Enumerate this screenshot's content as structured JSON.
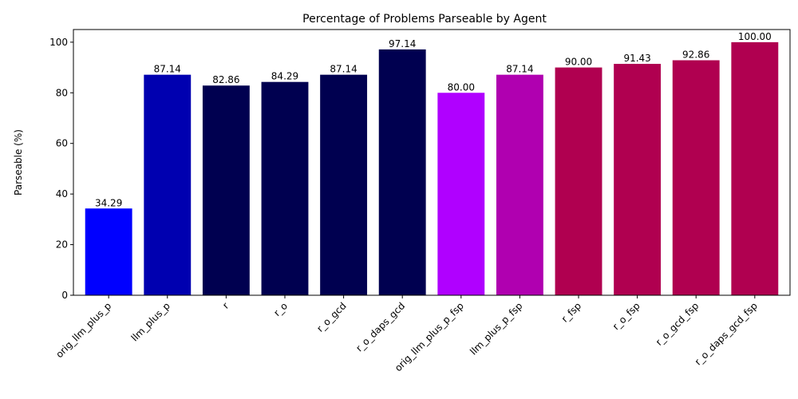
{
  "chart_data": {
    "type": "bar",
    "title": "Percentage of Problems Parseable by Agent",
    "xlabel": "",
    "ylabel": "Parseable (%)",
    "ylim": [
      0,
      105
    ],
    "yticks": [
      0,
      20,
      40,
      60,
      80,
      100
    ],
    "grid": false,
    "categories": [
      "orig_llm_plus_p",
      "llm_plus_p",
      "r",
      "r_o",
      "r_o_gcd",
      "r_o_daps_gcd",
      "orig_llm_plus_p_fsp",
      "llm_plus_p_fsp",
      "r_fsp",
      "r_o_fsp",
      "r_o_gcd_fsp",
      "r_o_daps_gcd_fsp"
    ],
    "values": [
      34.29,
      87.14,
      82.86,
      84.29,
      87.14,
      97.14,
      80.0,
      87.14,
      90.0,
      91.43,
      92.86,
      100.0
    ],
    "value_labels": [
      "34.29",
      "87.14",
      "82.86",
      "84.29",
      "87.14",
      "97.14",
      "80.00",
      "87.14",
      "90.00",
      "91.43",
      "92.86",
      "100.00"
    ],
    "colors": [
      "#0000ff",
      "#0000b0",
      "#000050",
      "#000050",
      "#000050",
      "#000050",
      "#b000ff",
      "#b000b0",
      "#b00050",
      "#b00050",
      "#b00050",
      "#b00050"
    ]
  }
}
